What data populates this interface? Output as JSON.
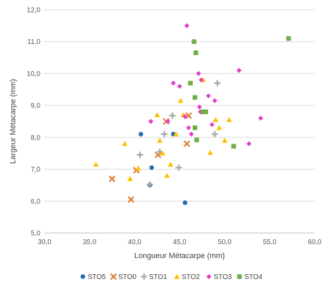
{
  "chart_data": {
    "type": "scatter",
    "xlabel": "Longueur Métacarpe (mm)",
    "ylabel": "Largeur Métacarpe (mm)",
    "xlim": [
      30,
      60
    ],
    "ylim": [
      5,
      12
    ],
    "xticks": [
      "30,0",
      "35,0",
      "40,0",
      "45,0",
      "50,0",
      "55,0",
      "60,0"
    ],
    "yticks": [
      "5,0",
      "6,0",
      "7,0",
      "8,0",
      "9,0",
      "10,0",
      "11,0",
      "12,0"
    ],
    "grid": "horizontal",
    "legend_position": "bottom",
    "series": [
      {
        "name": "STO5",
        "marker": "circle",
        "color": "#1f6fb2",
        "points": [
          [
            40.7,
            8.1
          ],
          [
            44.3,
            8.1
          ],
          [
            41.9,
            7.05
          ],
          [
            41.7,
            6.5
          ],
          [
            45.6,
            5.95
          ]
        ]
      },
      {
        "name": "STO0",
        "marker": "x",
        "color": "#e07b2e",
        "points": [
          [
            37.5,
            6.7
          ],
          [
            39.6,
            6.05
          ],
          [
            40.2,
            6.97
          ],
          [
            42.6,
            7.45
          ],
          [
            43.5,
            8.5
          ],
          [
            45.8,
            7.8
          ],
          [
            46.0,
            8.68
          ]
        ]
      },
      {
        "name": "STO1",
        "marker": "plus",
        "color": "#a5a5a5",
        "points": [
          [
            40.6,
            7.45
          ],
          [
            41.7,
            6.52
          ],
          [
            42.8,
            7.55
          ],
          [
            43.3,
            8.1
          ],
          [
            44.2,
            8.68
          ],
          [
            44.9,
            7.05
          ],
          [
            49.2,
            9.7
          ],
          [
            48.9,
            8.1
          ]
        ]
      },
      {
        "name": "STO2",
        "marker": "triangle",
        "color": "#ffc000",
        "points": [
          [
            35.7,
            7.15
          ],
          [
            38.9,
            7.8
          ],
          [
            39.5,
            6.7
          ],
          [
            40.4,
            7.03
          ],
          [
            42.5,
            8.7
          ],
          [
            42.8,
            7.9
          ],
          [
            43.1,
            7.5
          ],
          [
            43.6,
            6.8
          ],
          [
            44.0,
            7.15
          ],
          [
            44.6,
            8.1
          ],
          [
            45.1,
            9.15
          ],
          [
            45.4,
            8.7
          ],
          [
            47.6,
            9.8
          ],
          [
            48.4,
            7.52
          ],
          [
            49.0,
            8.55
          ],
          [
            49.4,
            8.3
          ],
          [
            50.0,
            7.9
          ],
          [
            50.5,
            8.55
          ]
        ]
      },
      {
        "name": "STO3",
        "marker": "diamond",
        "color": "#e040c8",
        "points": [
          [
            41.8,
            8.5
          ],
          [
            43.7,
            8.5
          ],
          [
            44.3,
            9.7
          ],
          [
            45.0,
            9.6
          ],
          [
            45.6,
            8.65
          ],
          [
            45.8,
            11.5
          ],
          [
            46.0,
            8.3
          ],
          [
            46.3,
            8.1
          ],
          [
            47.1,
            10.0
          ],
          [
            47.4,
            9.8
          ],
          [
            47.2,
            8.95
          ],
          [
            47.3,
            8.8
          ],
          [
            48.2,
            9.3
          ],
          [
            48.6,
            8.4
          ],
          [
            48.9,
            9.15
          ],
          [
            51.6,
            10.1
          ],
          [
            52.7,
            7.8
          ],
          [
            54.0,
            8.6
          ]
        ]
      },
      {
        "name": "STO4",
        "marker": "square",
        "color": "#70ad47",
        "points": [
          [
            46.2,
            9.7
          ],
          [
            46.6,
            11.0
          ],
          [
            46.8,
            10.65
          ],
          [
            46.7,
            9.25
          ],
          [
            46.7,
            8.3
          ],
          [
            46.9,
            7.92
          ],
          [
            47.9,
            8.8
          ],
          [
            47.6,
            8.8
          ],
          [
            51.0,
            7.72
          ],
          [
            57.1,
            11.1
          ]
        ]
      }
    ]
  }
}
